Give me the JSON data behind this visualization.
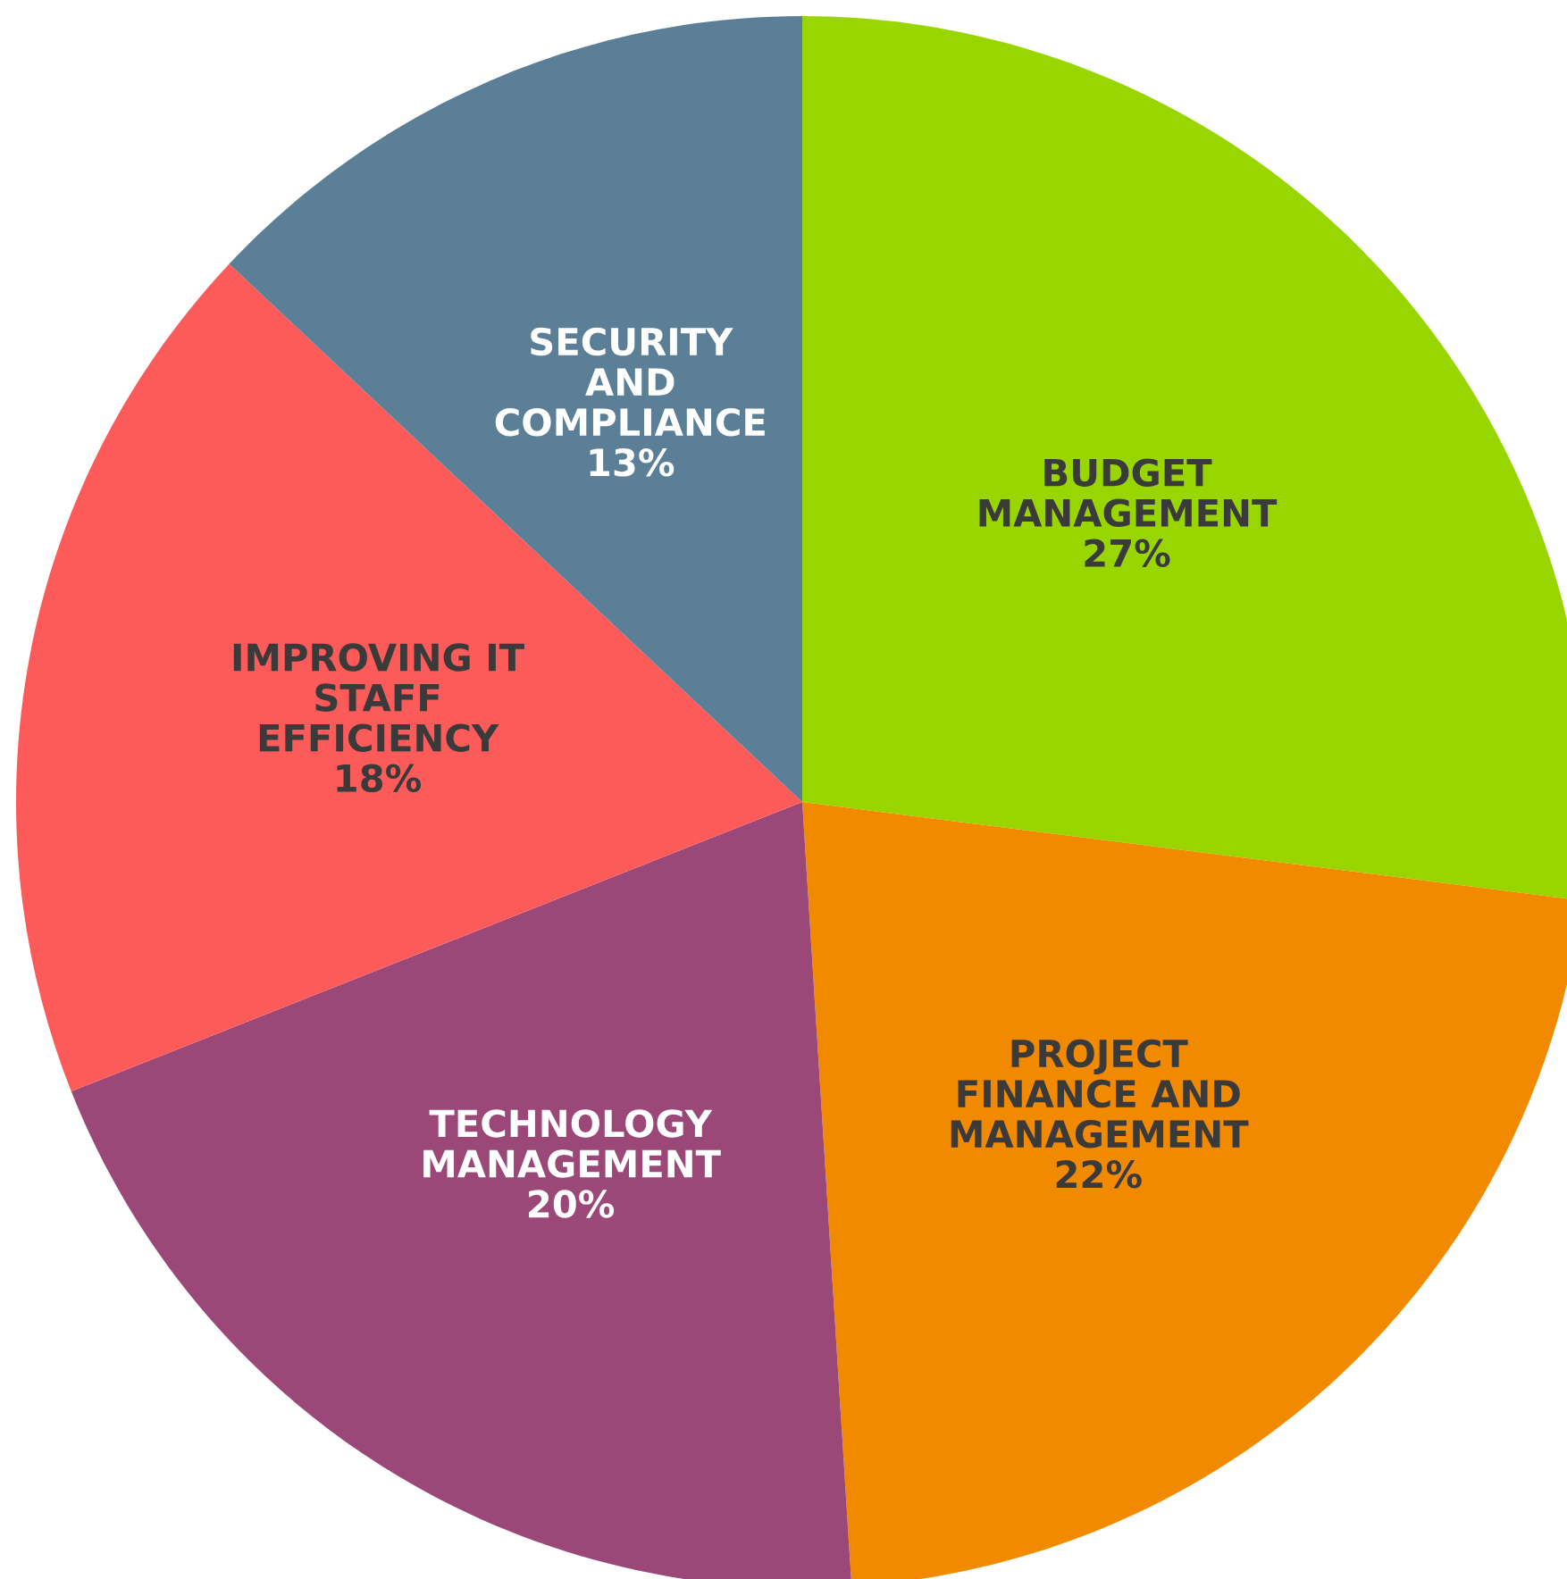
{
  "chart_data": {
    "type": "pie",
    "categories": [
      "BUDGET\nMANAGEMENT",
      "PROJECT\nFINANCE AND\nMANAGEMENT",
      "TECHNOLOGY\nMANAGEMENT",
      "IMPROVING IT\nSTAFF\nEFFICIENCY",
      "SECURITY\nAND\nCOMPLIANCE"
    ],
    "values": [
      27,
      22,
      20,
      18,
      13
    ],
    "value_labels": [
      "27%",
      "22%",
      "20%",
      "18%",
      "13%"
    ],
    "colors": [
      "#99d600",
      "#f28a00",
      "#9b4878",
      "#fd5a5a",
      "#5a7f96"
    ]
  }
}
